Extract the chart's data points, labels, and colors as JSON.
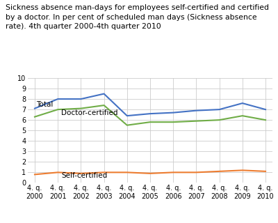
{
  "title_line1": "Sickness absence man-days for employees self-certified and certified",
  "title_line2": "by a doctor. In per cent of scheduled man days (Sickness absence",
  "title_line3": "rate). 4th quarter 2000-4th quarter 2010",
  "x_labels": [
    "4. q.\n2000",
    "4. q.\n2001",
    "4. q.\n2002",
    "4. q.\n2003",
    "4. q.\n2004",
    "4. q.\n2005",
    "4. q.\n2006",
    "4. q.\n2007",
    "4. q.\n2008",
    "4. q.\n2009",
    "4. q.\n2010"
  ],
  "total": [
    7.1,
    8.0,
    8.0,
    8.5,
    6.4,
    6.6,
    6.7,
    6.9,
    7.0,
    7.6,
    7.0
  ],
  "doctor_certified": [
    6.3,
    7.0,
    7.1,
    7.4,
    5.5,
    5.8,
    5.8,
    5.9,
    6.0,
    6.4,
    6.0
  ],
  "self_certified": [
    0.8,
    1.0,
    0.9,
    1.0,
    1.0,
    0.9,
    1.0,
    1.0,
    1.1,
    1.2,
    1.1
  ],
  "total_color": "#4472C4",
  "doctor_color": "#70AD47",
  "self_color": "#ED7D31",
  "ylim": [
    0,
    10
  ],
  "yticks": [
    0,
    1,
    2,
    3,
    4,
    5,
    6,
    7,
    8,
    9,
    10
  ],
  "background_color": "#ffffff",
  "grid_color": "#cccccc",
  "title_fontsize": 7.8,
  "label_fontsize": 7.5,
  "tick_fontsize": 7.0
}
